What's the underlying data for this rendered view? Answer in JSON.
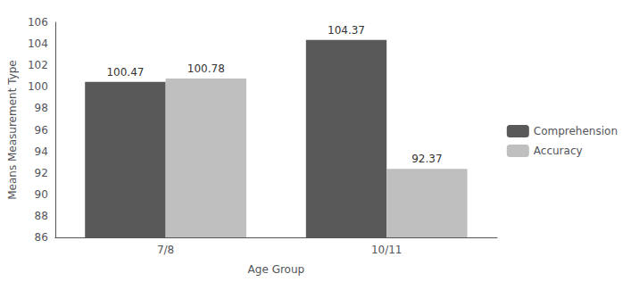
{
  "chart_data": {
    "type": "bar",
    "categories": [
      "7/8",
      "10/11"
    ],
    "series": [
      {
        "name": "Comprehension",
        "color": "#595959",
        "values": [
          100.47,
          104.37
        ]
      },
      {
        "name": "Accuracy",
        "color": "#bfbfbf",
        "values": [
          100.78,
          92.37
        ]
      }
    ],
    "xlabel": "Age Group",
    "ylabel": "Means Measurement Type",
    "ylim": [
      86,
      106
    ],
    "yticks": [
      86,
      88,
      90,
      92,
      94,
      96,
      98,
      100,
      102,
      104,
      106
    ],
    "data_labels": true,
    "grid": false,
    "legend": "right"
  }
}
